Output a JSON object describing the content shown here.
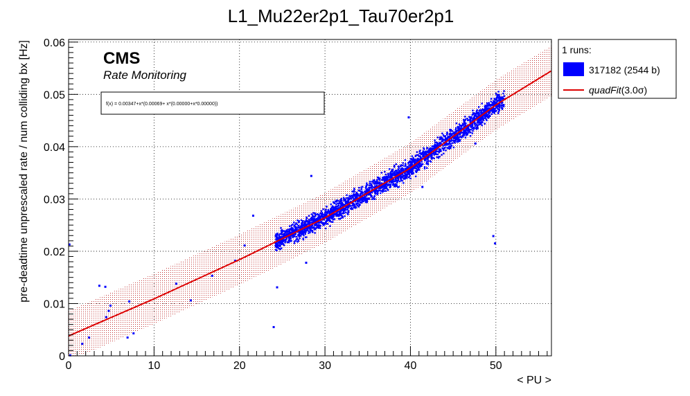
{
  "chart_data": {
    "type": "scatter",
    "title": "L1_Mu22er2p1_Tau70er2p1",
    "xlabel": "< PU >",
    "ylabel": "pre-deadtime unprescaled rate / num colliding bx [Hz]",
    "xlim": [
      0,
      56.5
    ],
    "ylim": [
      0,
      0.0605
    ],
    "x_ticks": [
      0,
      10,
      20,
      30,
      40,
      50
    ],
    "x_tick_labels": [
      "0",
      "10",
      "20",
      "30",
      "40",
      "50"
    ],
    "y_ticks": [
      0,
      0.01,
      0.02,
      0.03,
      0.04,
      0.05,
      0.06
    ],
    "y_tick_labels": [
      "0",
      "0.01",
      "0.02",
      "0.03",
      "0.04",
      "0.05",
      "0.06"
    ],
    "grid": true,
    "cms_label": "CMS",
    "cms_sublabel": "Rate Monitoring",
    "formula": "f(x) = 0.00347+x*(0.00069+ x*(0.00000+x*0.00000))",
    "legend": {
      "placement": "top-right, outside plot",
      "header": "1 runs:",
      "entries": [
        {
          "label": "317182 (2544 b)",
          "color": "#0000ff",
          "kind": "box"
        },
        {
          "label_main": "quadFit",
          "label_suffix": "(3.0σ)",
          "color": "#dd0000",
          "kind": "line"
        }
      ]
    },
    "fit": {
      "name": "quadFit",
      "range": [
        0,
        56.5
      ],
      "points": [
        {
          "x": 0,
          "y": 0.0038
        },
        {
          "x": 10,
          "y": 0.0109
        },
        {
          "x": 20,
          "y": 0.0184
        },
        {
          "x": 30,
          "y": 0.0264
        },
        {
          "x": 40,
          "y": 0.0359
        },
        {
          "x": 50,
          "y": 0.048
        },
        {
          "x": 56.5,
          "y": 0.0545
        }
      ],
      "band_halfwidth": 0.0048,
      "color": "#dd0000"
    },
    "series": [
      {
        "name": "317182 (2544 b)",
        "color": "#0000ff",
        "points": [
          [
            0.1,
            0.0213
          ],
          [
            0.2,
            0.0001
          ],
          [
            1.6,
            0.0023
          ],
          [
            2.4,
            0.0035
          ],
          [
            3.6,
            0.0134
          ],
          [
            4.3,
            0.0132
          ],
          [
            4.4,
            0.0074
          ],
          [
            4.7,
            0.0086
          ],
          [
            4.9,
            0.0096
          ],
          [
            7.1,
            0.0104
          ],
          [
            6.9,
            0.0035
          ],
          [
            7.6,
            0.0043
          ],
          [
            12.6,
            0.0138
          ],
          [
            14.3,
            0.0106
          ],
          [
            16.8,
            0.0153
          ],
          [
            19.5,
            0.0182
          ],
          [
            20.6,
            0.0211
          ],
          [
            21.6,
            0.0268
          ],
          [
            24.0,
            0.0055
          ],
          [
            24.4,
            0.0131
          ],
          [
            24.3,
            0.0232
          ],
          [
            27.8,
            0.0178
          ],
          [
            28.4,
            0.0344
          ],
          [
            41.4,
            0.0323
          ],
          [
            47.6,
            0.0406
          ],
          [
            39.8,
            0.0456
          ],
          [
            49.7,
            0.0229
          ],
          [
            49.9,
            0.0215
          ]
        ],
        "dense_cloud": {
          "x_range": [
            24.2,
            51.0
          ],
          "count": 2500,
          "spread": 0.0009
        }
      }
    ]
  }
}
